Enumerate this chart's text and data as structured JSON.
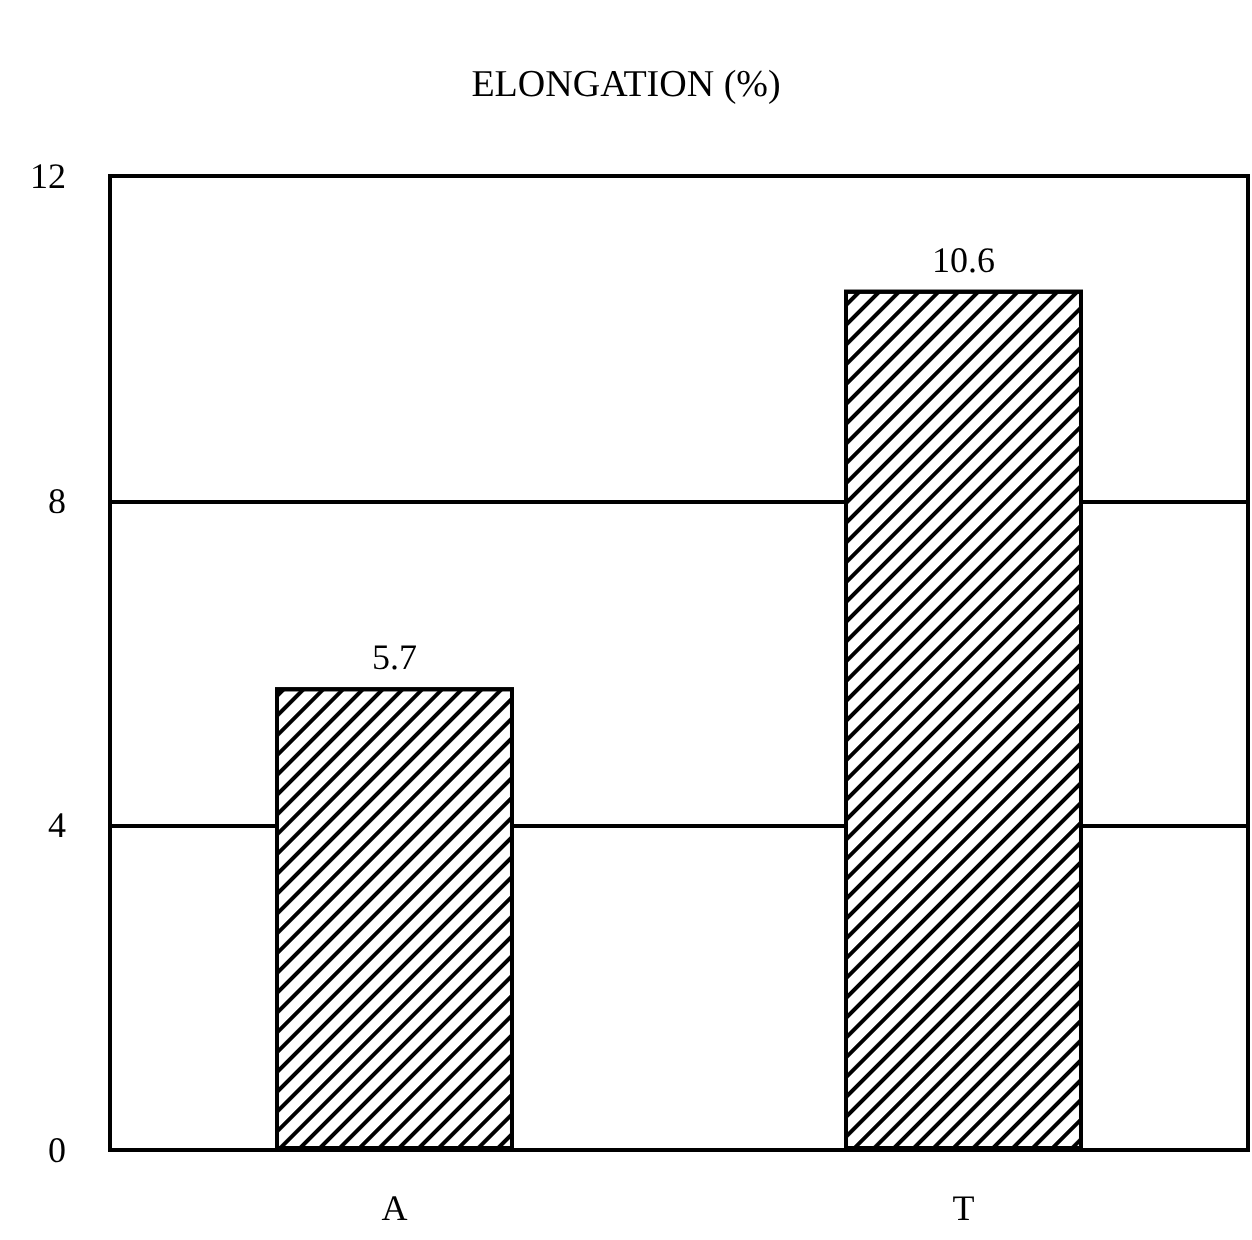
{
  "chart_data": {
    "type": "bar",
    "title": "ELONGATION (%)",
    "categories": [
      "A",
      "T"
    ],
    "values": [
      5.7,
      10.6
    ],
    "color": "#ffffff",
    "ylim": [
      0,
      12
    ],
    "yticks": [
      0,
      4,
      8,
      12
    ],
    "grid": "y",
    "data_labels": true
  }
}
